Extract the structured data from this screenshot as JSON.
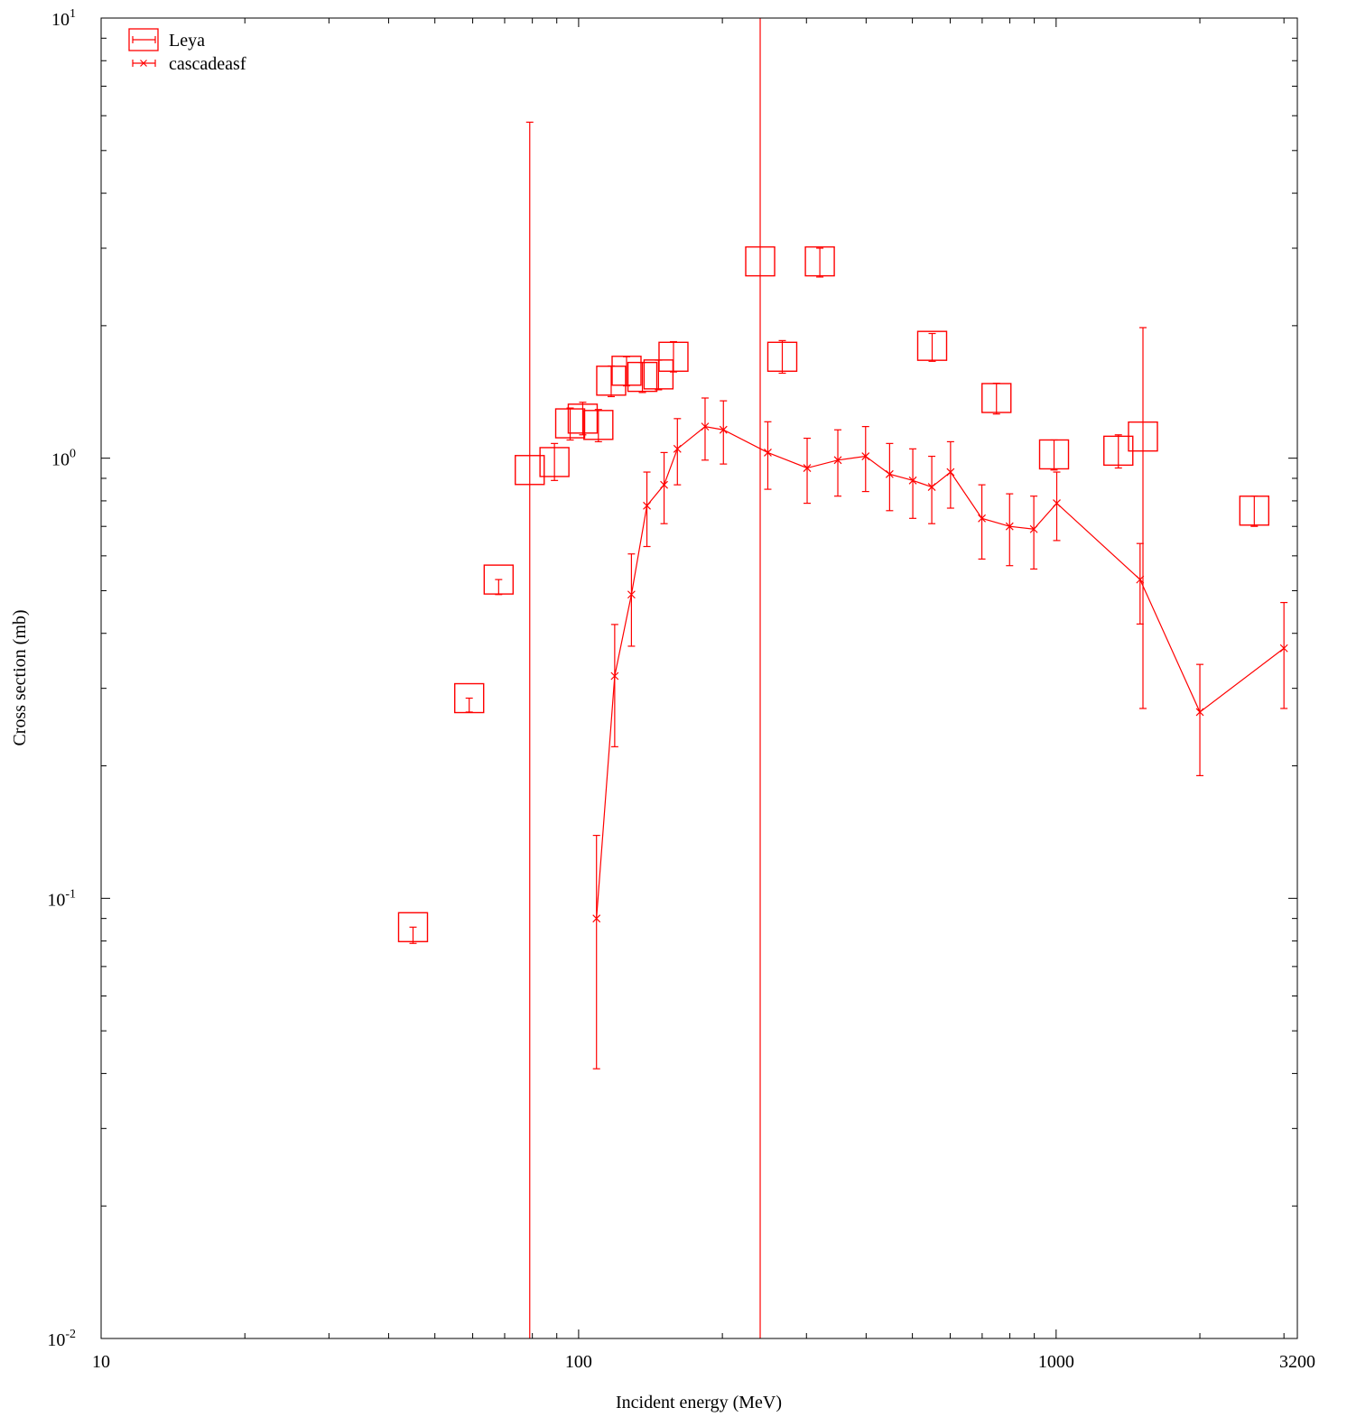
{
  "chart_data": {
    "type": "scatter",
    "xlabel": "Incident energy (MeV)",
    "ylabel": "Cross section (mb)",
    "xscale": "log",
    "yscale": "log",
    "xlim": [
      10,
      3200
    ],
    "ylim": [
      0.01,
      10
    ],
    "x_ticks": [
      {
        "value": 10,
        "label": "10"
      },
      {
        "value": 100,
        "label": "100"
      },
      {
        "value": 1000,
        "label": "1000"
      },
      {
        "value": 3200,
        "label": "3200"
      }
    ],
    "y_ticks": [
      {
        "value": 0.01,
        "base": "10",
        "exp": "-2"
      },
      {
        "value": 0.1,
        "base": "10",
        "exp": "-1"
      },
      {
        "value": 1,
        "base": "10",
        "exp": "0"
      },
      {
        "value": 10,
        "base": "10",
        "exp": "1"
      }
    ],
    "grid": false,
    "legend_position": "top-left",
    "color": "#ff0000",
    "series": [
      {
        "name": "Leya",
        "marker": "square",
        "line": false,
        "points": [
          {
            "x": 45,
            "y": 0.086,
            "ylo": 0.079,
            "yhi": 0.086
          },
          {
            "x": 59,
            "y": 0.285,
            "ylo": 0.265,
            "yhi": 0.285
          },
          {
            "x": 68,
            "y": 0.53,
            "ylo": 0.49,
            "yhi": 0.53
          },
          {
            "x": 79,
            "y": 0.94,
            "ylo": 0.01,
            "yhi": 5.8
          },
          {
            "x": 89,
            "y": 0.98,
            "ylo": 0.89,
            "yhi": 1.08
          },
          {
            "x": 96,
            "y": 1.2,
            "ylo": 1.1,
            "yhi": 1.3
          },
          {
            "x": 102,
            "y": 1.23,
            "ylo": 1.13,
            "yhi": 1.34
          },
          {
            "x": 110,
            "y": 1.19,
            "ylo": 1.09,
            "yhi": 1.29
          },
          {
            "x": 117,
            "y": 1.5,
            "ylo": 1.38,
            "yhi": 1.62
          },
          {
            "x": 126,
            "y": 1.58,
            "ylo": 1.46,
            "yhi": 1.7
          },
          {
            "x": 136,
            "y": 1.53,
            "ylo": 1.41,
            "yhi": 1.65
          },
          {
            "x": 147,
            "y": 1.55,
            "ylo": 1.43,
            "yhi": 1.67
          },
          {
            "x": 158,
            "y": 1.7,
            "ylo": 1.57,
            "yhi": 1.84
          },
          {
            "x": 240,
            "y": 2.8,
            "ylo": 0.01,
            "yhi": 10
          },
          {
            "x": 267,
            "y": 1.7,
            "ylo": 1.56,
            "yhi": 1.85
          },
          {
            "x": 320,
            "y": 2.8,
            "ylo": 2.58,
            "yhi": 3.0
          },
          {
            "x": 550,
            "y": 1.8,
            "ylo": 1.66,
            "yhi": 1.92
          },
          {
            "x": 750,
            "y": 1.37,
            "ylo": 1.26,
            "yhi": 1.48
          },
          {
            "x": 990,
            "y": 1.02,
            "ylo": 0.94,
            "yhi": 1.1
          },
          {
            "x": 1350,
            "y": 1.04,
            "ylo": 0.95,
            "yhi": 1.13
          },
          {
            "x": 1520,
            "y": 1.12,
            "ylo": 0.27,
            "yhi": 1.98
          },
          {
            "x": 2600,
            "y": 0.76,
            "ylo": 0.7,
            "yhi": 0.82
          }
        ]
      },
      {
        "name": "cascadeasf",
        "marker": "x",
        "line": true,
        "points": [
          {
            "x": 109,
            "y": 0.09,
            "ylo": 0.041,
            "yhi": 0.139
          },
          {
            "x": 119,
            "y": 0.32,
            "ylo": 0.221,
            "yhi": 0.419
          },
          {
            "x": 129,
            "y": 0.49,
            "ylo": 0.374,
            "yhi": 0.606
          },
          {
            "x": 139,
            "y": 0.78,
            "ylo": 0.63,
            "yhi": 0.93
          },
          {
            "x": 151,
            "y": 0.87,
            "ylo": 0.71,
            "yhi": 1.03
          },
          {
            "x": 161,
            "y": 1.05,
            "ylo": 0.87,
            "yhi": 1.23
          },
          {
            "x": 184,
            "y": 1.18,
            "ylo": 0.99,
            "yhi": 1.37
          },
          {
            "x": 201,
            "y": 1.16,
            "ylo": 0.97,
            "yhi": 1.35
          },
          {
            "x": 249,
            "y": 1.03,
            "ylo": 0.85,
            "yhi": 1.21
          },
          {
            "x": 301,
            "y": 0.95,
            "ylo": 0.79,
            "yhi": 1.11
          },
          {
            "x": 349,
            "y": 0.99,
            "ylo": 0.82,
            "yhi": 1.16
          },
          {
            "x": 399,
            "y": 1.01,
            "ylo": 0.84,
            "yhi": 1.18
          },
          {
            "x": 448,
            "y": 0.92,
            "ylo": 0.76,
            "yhi": 1.08
          },
          {
            "x": 501,
            "y": 0.89,
            "ylo": 0.73,
            "yhi": 1.05
          },
          {
            "x": 549,
            "y": 0.86,
            "ylo": 0.71,
            "yhi": 1.01
          },
          {
            "x": 601,
            "y": 0.93,
            "ylo": 0.77,
            "yhi": 1.09
          },
          {
            "x": 699,
            "y": 0.73,
            "ylo": 0.59,
            "yhi": 0.87
          },
          {
            "x": 799,
            "y": 0.7,
            "ylo": 0.57,
            "yhi": 0.83
          },
          {
            "x": 898,
            "y": 0.69,
            "ylo": 0.56,
            "yhi": 0.82
          },
          {
            "x": 1003,
            "y": 0.79,
            "ylo": 0.65,
            "yhi": 0.93
          },
          {
            "x": 1499,
            "y": 0.53,
            "ylo": 0.42,
            "yhi": 0.64
          },
          {
            "x": 2000,
            "y": 0.265,
            "ylo": 0.19,
            "yhi": 0.34
          },
          {
            "x": 3000,
            "y": 0.37,
            "ylo": 0.27,
            "yhi": 0.47
          }
        ]
      }
    ]
  }
}
